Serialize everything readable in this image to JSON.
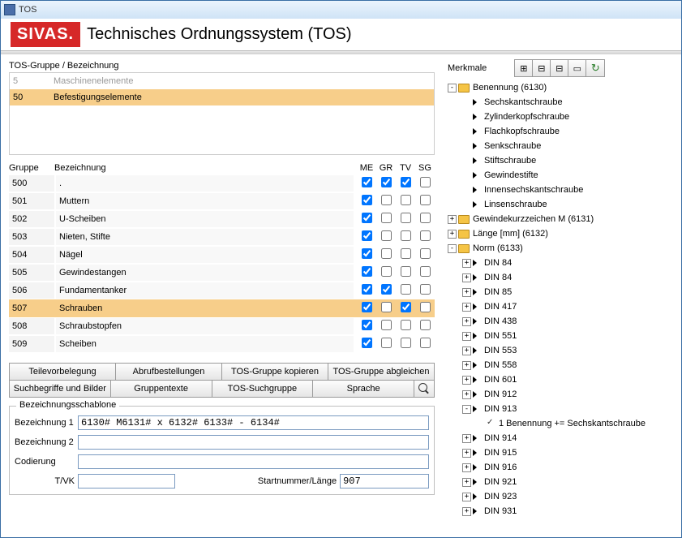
{
  "window": {
    "title": "TOS"
  },
  "header": {
    "brand": "SIVAS.",
    "title": "Technisches Ordnungssystem (TOS)"
  },
  "pathlabel": "TOS-Gruppe / Bezeichnung",
  "pathrows": [
    {
      "code": "5",
      "text": "Maschinenelemente",
      "selected": false,
      "dim": true
    },
    {
      "code": "50",
      "text": "Befestigungselemente",
      "selected": true,
      "dim": false
    },
    {
      "code": "",
      "text": "",
      "selected": false,
      "dim": false
    },
    {
      "code": "",
      "text": "",
      "selected": false,
      "dim": false
    },
    {
      "code": "",
      "text": "",
      "selected": false,
      "dim": false
    }
  ],
  "gridhead": {
    "gruppe": "Gruppe",
    "bez": "Bezeichnung",
    "me": "ME",
    "gr": "GR",
    "tv": "TV",
    "sg": "SG"
  },
  "gridrows": [
    {
      "code": "500",
      "bez": ".",
      "me": true,
      "gr": true,
      "tv": true,
      "sg": false,
      "sel": false
    },
    {
      "code": "501",
      "bez": "Muttern",
      "me": true,
      "gr": false,
      "tv": false,
      "sg": false,
      "sel": false
    },
    {
      "code": "502",
      "bez": "U-Scheiben",
      "me": true,
      "gr": false,
      "tv": false,
      "sg": false,
      "sel": false
    },
    {
      "code": "503",
      "bez": "Nieten, Stifte",
      "me": true,
      "gr": false,
      "tv": false,
      "sg": false,
      "sel": false
    },
    {
      "code": "504",
      "bez": "Nägel",
      "me": true,
      "gr": false,
      "tv": false,
      "sg": false,
      "sel": false
    },
    {
      "code": "505",
      "bez": "Gewindestangen",
      "me": true,
      "gr": false,
      "tv": false,
      "sg": false,
      "sel": false
    },
    {
      "code": "506",
      "bez": "Fundamentanker",
      "me": true,
      "gr": true,
      "tv": false,
      "sg": false,
      "sel": false
    },
    {
      "code": "507",
      "bez": "Schrauben",
      "me": true,
      "gr": false,
      "tv": true,
      "sg": false,
      "sel": true
    },
    {
      "code": "508",
      "bez": "Schraubstopfen",
      "me": true,
      "gr": false,
      "tv": false,
      "sg": false,
      "sel": false
    },
    {
      "code": "509",
      "bez": "Scheiben",
      "me": true,
      "gr": false,
      "tv": false,
      "sg": false,
      "sel": false
    }
  ],
  "buttons": {
    "r1": [
      "Teilevorbelegung",
      "Abrufbestellungen",
      "TOS-Gruppe kopieren",
      "TOS-Gruppe abgleichen"
    ],
    "r2": [
      "Suchbegriffe und Bilder",
      "Gruppentexte",
      "TOS-Suchgruppe",
      "Sprache"
    ]
  },
  "schablone": {
    "legend": "Bezeichnungsschablone",
    "bez1_label": "Bezeichnung 1",
    "bez1_value": "6130# M6131# x 6132# 6133# - 6134#",
    "bez2_label": "Bezeichnung 2",
    "bez2_value": "",
    "cod_label": "Codierung",
    "cod_value": "",
    "tvk_label": "T/VK",
    "tvk_value": "",
    "startnr_label": "Startnummer/Länge",
    "startnr_value": "907"
  },
  "merkmale": {
    "label": "Merkmale",
    "tree": [
      {
        "lvl": 0,
        "exp": "-",
        "folder": true,
        "label": "Benennung (6130)"
      },
      {
        "lvl": 1,
        "arrow": true,
        "label": "Sechskantschraube"
      },
      {
        "lvl": 1,
        "arrow": true,
        "label": "Zylinderkopfschraube"
      },
      {
        "lvl": 1,
        "arrow": true,
        "label": "Flachkopfschraube"
      },
      {
        "lvl": 1,
        "arrow": true,
        "label": "Senkschraube"
      },
      {
        "lvl": 1,
        "arrow": true,
        "label": "Stiftschraube"
      },
      {
        "lvl": 1,
        "arrow": true,
        "label": "Gewindestifte"
      },
      {
        "lvl": 1,
        "arrow": true,
        "label": "Innensechskantschraube"
      },
      {
        "lvl": 1,
        "arrow": true,
        "label": "Linsenschraube"
      },
      {
        "lvl": 0,
        "exp": "+",
        "folder": true,
        "label": "Gewindekurzzeichen M (6131)"
      },
      {
        "lvl": 0,
        "exp": "+",
        "folder": true,
        "label": "Länge [mm] (6132)"
      },
      {
        "lvl": 0,
        "exp": "-",
        "folder": true,
        "label": "Norm (6133)"
      },
      {
        "lvl": 1,
        "exp": "+",
        "arrow": true,
        "label": "DIN 84"
      },
      {
        "lvl": 1,
        "exp": "+",
        "arrow": true,
        "label": "DIN 84"
      },
      {
        "lvl": 1,
        "exp": "+",
        "arrow": true,
        "label": "DIN 85"
      },
      {
        "lvl": 1,
        "exp": "+",
        "arrow": true,
        "label": "DIN 417"
      },
      {
        "lvl": 1,
        "exp": "+",
        "arrow": true,
        "label": "DIN 438"
      },
      {
        "lvl": 1,
        "exp": "+",
        "arrow": true,
        "label": "DIN 551"
      },
      {
        "lvl": 1,
        "exp": "+",
        "arrow": true,
        "label": "DIN 553"
      },
      {
        "lvl": 1,
        "exp": "+",
        "arrow": true,
        "label": "DIN 558"
      },
      {
        "lvl": 1,
        "exp": "+",
        "arrow": true,
        "label": "DIN 601"
      },
      {
        "lvl": 1,
        "exp": "+",
        "arrow": true,
        "label": "DIN 912"
      },
      {
        "lvl": 1,
        "exp": "-",
        "arrow": true,
        "label": "DIN 913"
      },
      {
        "lvl": 2,
        "check": true,
        "label": "1 Benennung += Sechskantschraube"
      },
      {
        "lvl": 1,
        "exp": "+",
        "arrow": true,
        "label": "DIN 914"
      },
      {
        "lvl": 1,
        "exp": "+",
        "arrow": true,
        "label": "DIN 915"
      },
      {
        "lvl": 1,
        "exp": "+",
        "arrow": true,
        "label": "DIN 916"
      },
      {
        "lvl": 1,
        "exp": "+",
        "arrow": true,
        "label": "DIN 921"
      },
      {
        "lvl": 1,
        "exp": "+",
        "arrow": true,
        "label": "DIN 923"
      },
      {
        "lvl": 1,
        "exp": "+",
        "arrow": true,
        "label": "DIN 931"
      }
    ]
  },
  "colors": {
    "highlight": "#f7ce8a",
    "brand": "#d62828"
  }
}
